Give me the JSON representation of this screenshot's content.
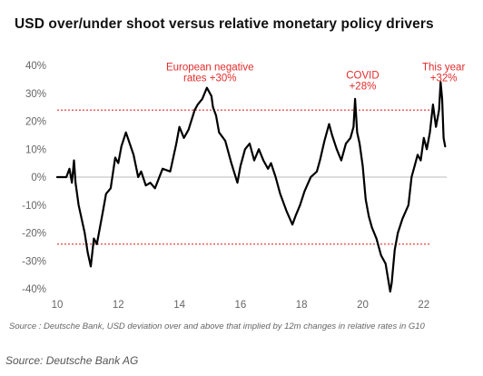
{
  "chart_data": {
    "type": "line",
    "title": "USD over/under shoot versus relative monetary policy drivers",
    "xlabel": "",
    "ylabel": "",
    "xlim": [
      10,
      22.75
    ],
    "ylim": [
      -40,
      40
    ],
    "x_ticks": [
      "10",
      "12",
      "14",
      "16",
      "18",
      "20",
      "22"
    ],
    "y_ticks": [
      "40%",
      "30%",
      "20%",
      "10%",
      "0%",
      "-10%",
      "-20%",
      "-30%",
      "-40%"
    ],
    "reference_lines": [
      {
        "value": 24,
        "style": "dotted",
        "color": "#e32b2b"
      },
      {
        "value": -24,
        "style": "dotted",
        "color": "#e32b2b"
      }
    ],
    "zero_line": {
      "value": 0,
      "color": "#bbbbbb"
    },
    "series": [
      {
        "color": "#000000",
        "x": [
          10.0,
          10.3,
          10.4,
          10.48,
          10.55,
          10.6,
          10.7,
          10.9,
          11.0,
          11.1,
          11.2,
          11.3,
          11.5,
          11.6,
          11.75,
          11.9,
          12.0,
          12.1,
          12.25,
          12.5,
          12.65,
          12.75,
          12.9,
          13.05,
          13.2,
          13.45,
          13.7,
          13.9,
          14.0,
          14.15,
          14.3,
          14.5,
          14.6,
          14.75,
          14.9,
          15.05,
          15.1,
          15.2,
          15.3,
          15.5,
          15.7,
          15.9,
          16.0,
          16.15,
          16.3,
          16.45,
          16.6,
          16.75,
          16.9,
          17.0,
          17.15,
          17.3,
          17.5,
          17.7,
          17.8,
          17.95,
          18.1,
          18.3,
          18.5,
          18.6,
          18.75,
          18.9,
          19.0,
          19.15,
          19.3,
          19.45,
          19.6,
          19.7,
          19.75,
          19.82,
          19.9,
          20.0,
          20.1,
          20.2,
          20.3,
          20.45,
          20.6,
          20.75,
          20.9,
          20.95,
          21.05,
          21.15,
          21.3,
          21.5,
          21.6,
          21.7,
          21.8,
          21.9,
          22.0,
          22.1,
          22.2,
          22.3,
          22.4,
          22.5,
          22.55,
          22.6,
          22.65,
          22.7
        ],
        "y": [
          0,
          0,
          3,
          -2,
          6,
          -2,
          -10,
          -20,
          -27,
          -32,
          -22,
          -24,
          -12,
          -6,
          -4,
          7,
          5,
          11,
          16,
          8,
          0,
          2,
          -3,
          -2,
          -4,
          3,
          2,
          12,
          18,
          14,
          17,
          24,
          26,
          28,
          32,
          29,
          25,
          22,
          16,
          13,
          5,
          -2,
          4,
          10,
          12,
          6,
          10,
          6,
          3,
          5,
          0,
          -6,
          -12,
          -17,
          -14,
          -10,
          -5,
          0,
          2,
          6,
          13,
          19,
          15,
          10,
          6,
          12,
          14,
          18,
          28,
          16,
          12,
          4,
          -8,
          -14,
          -18,
          -22,
          -28,
          -31,
          -41,
          -38,
          -26,
          -20,
          -15,
          -10,
          0,
          4,
          8,
          6,
          14,
          10,
          16,
          26,
          18,
          24,
          34,
          28,
          14,
          11
        ]
      }
    ],
    "annotations": [
      {
        "lines": [
          "European negative",
          "rates +30%"
        ],
        "x": 15.0,
        "y": 35
      },
      {
        "lines": [
          "COVID",
          "+28%"
        ],
        "x": 20.0,
        "y": 32
      },
      {
        "lines": [
          "This year",
          "+32%"
        ],
        "x": 22.65,
        "y": 35
      }
    ]
  },
  "footer": {
    "source_note": "Source : Deutsche Bank, USD deviation over and above that implied by 12m changes in relative rates in G10",
    "credit": "Source: Deutsche Bank AG"
  }
}
